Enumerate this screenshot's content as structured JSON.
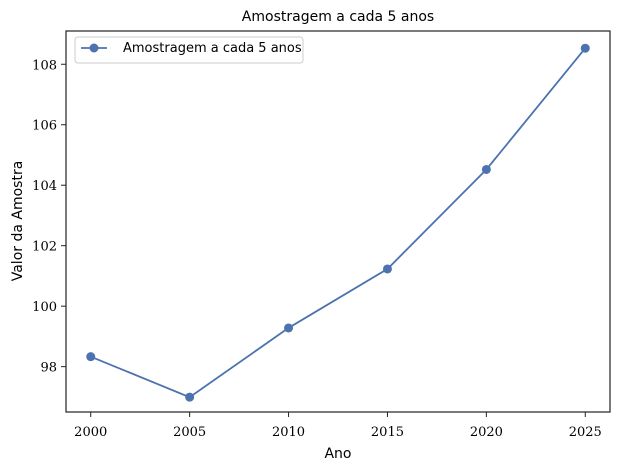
{
  "chart_data": {
    "type": "line",
    "title": "Amostragem a cada 5 anos",
    "xlabel": "Ano",
    "ylabel": "Valor da Amostra",
    "x": [
      2000,
      2005,
      2010,
      2015,
      2020,
      2025
    ],
    "xlim": [
      1998.75,
      2026.25
    ],
    "ylim": [
      96.5,
      109.1
    ],
    "xticks": [
      "2000",
      "2005",
      "2010",
      "2015",
      "2020",
      "2025"
    ],
    "yticks": [
      "98",
      "100",
      "102",
      "104",
      "106",
      "108"
    ],
    "grid": false,
    "legend_position": "top-left",
    "series": [
      {
        "name": "Amostragem a cada 5 anos",
        "color": "#4c72b0",
        "marker": "circle",
        "values": [
          98.33,
          96.99,
          99.28,
          101.23,
          104.52,
          108.53
        ]
      }
    ]
  }
}
